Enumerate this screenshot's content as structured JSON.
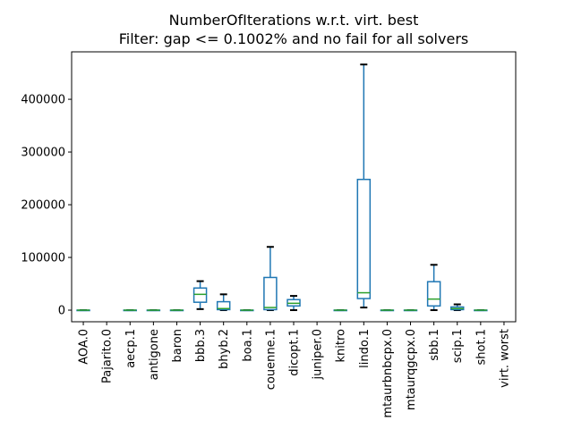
{
  "chart_data": {
    "type": "box",
    "title": "NumberOfIterations w.r.t. virt. best",
    "subtitle": "Filter: gap <= 0.1002% and no fail for all solvers",
    "xlabel": "",
    "ylabel": "",
    "ylim": [
      -22000,
      490000
    ],
    "yticks": [
      0,
      100000,
      200000,
      300000,
      400000
    ],
    "categories": [
      "AOA.0",
      "Pajarito.0",
      "aecp.1",
      "antigone",
      "baron",
      "bbb.3",
      "bhyb.2",
      "boa.1",
      "couenne.1",
      "dicopt.1",
      "juniper.0",
      "knitro",
      "lindo.1",
      "mtaurbnbcpx.0",
      "mtaurqgcpx.0",
      "sbb.1",
      "scip.1",
      "shot.1",
      "virt. worst"
    ],
    "boxes": [
      {
        "label": "AOA.0",
        "whislo": 0,
        "q1": 0,
        "med": 0,
        "q3": 0,
        "whishi": 0
      },
      {
        "label": "Pajarito.0",
        "whislo": null,
        "q1": null,
        "med": null,
        "q3": null,
        "whishi": null
      },
      {
        "label": "aecp.1",
        "whislo": 0,
        "q1": 0,
        "med": 0,
        "q3": 0,
        "whishi": 0
      },
      {
        "label": "antigone",
        "whislo": 0,
        "q1": 0,
        "med": 0,
        "q3": 0,
        "whishi": 0
      },
      {
        "label": "baron",
        "whislo": 0,
        "q1": 0,
        "med": 0,
        "q3": 0,
        "whishi": 0
      },
      {
        "label": "bbb.3",
        "whislo": 2000,
        "q1": 15000,
        "med": 30000,
        "q3": 42000,
        "whishi": 55000
      },
      {
        "label": "bhyb.2",
        "whislo": 0,
        "q1": 1000,
        "med": 3000,
        "q3": 16000,
        "whishi": 30000
      },
      {
        "label": "boa.1",
        "whislo": 0,
        "q1": 0,
        "med": 0,
        "q3": 0,
        "whishi": 0
      },
      {
        "label": "couenne.1",
        "whislo": 0,
        "q1": 1000,
        "med": 5000,
        "q3": 62000,
        "whishi": 120000
      },
      {
        "label": "dicopt.1",
        "whislo": 0,
        "q1": 8000,
        "med": 13000,
        "q3": 20000,
        "whishi": 27000
      },
      {
        "label": "juniper.0",
        "whislo": null,
        "q1": null,
        "med": null,
        "q3": null,
        "whishi": null
      },
      {
        "label": "knitro",
        "whislo": 0,
        "q1": 0,
        "med": 0,
        "q3": 0,
        "whishi": 0
      },
      {
        "label": "lindo.1",
        "whislo": 5000,
        "q1": 22000,
        "med": 33000,
        "q3": 248000,
        "whishi": 466000
      },
      {
        "label": "mtaurbnbcpx.0",
        "whislo": 0,
        "q1": 0,
        "med": 0,
        "q3": 0,
        "whishi": 0
      },
      {
        "label": "mtaurqgcpx.0",
        "whislo": 0,
        "q1": 0,
        "med": 0,
        "q3": 0,
        "whishi": 0
      },
      {
        "label": "sbb.1",
        "whislo": 0,
        "q1": 8000,
        "med": 21000,
        "q3": 54000,
        "whishi": 86000
      },
      {
        "label": "scip.1",
        "whislo": 0,
        "q1": 1000,
        "med": 3000,
        "q3": 6000,
        "whishi": 11000
      },
      {
        "label": "shot.1",
        "whislo": 0,
        "q1": 0,
        "med": 0,
        "q3": 0,
        "whishi": 0
      },
      {
        "label": "virt. worst",
        "whislo": null,
        "q1": null,
        "med": null,
        "q3": null,
        "whishi": null
      }
    ],
    "colors": {
      "box": "#1f77b4",
      "median": "#2ca02c",
      "whisker": "#000000",
      "axis": "#000000"
    },
    "grid": false,
    "legend": "none"
  }
}
